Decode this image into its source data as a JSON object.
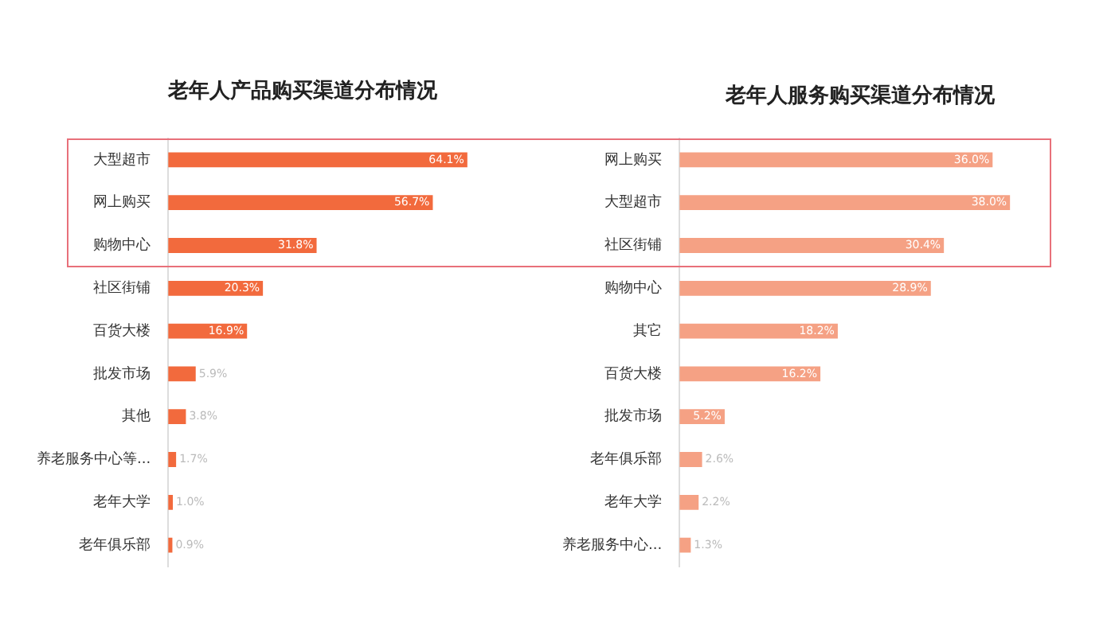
{
  "chart_data": [
    {
      "type": "bar",
      "orientation": "horizontal",
      "title": "老年人产品购买渠道分布情况",
      "categories": [
        "大型超市",
        "网上购买",
        "购物中心",
        "社区街铺",
        "百货大楼",
        "批发市场",
        "其他",
        "养老服务中心等...",
        "老年大学",
        "老年俱乐部"
      ],
      "values": [
        64.1,
        56.7,
        31.8,
        20.3,
        16.9,
        5.9,
        3.8,
        1.7,
        1.0,
        0.9
      ],
      "value_labels": [
        "64.1%",
        "56.7%",
        "31.8%",
        "20.3%",
        "16.9%",
        "5.9%",
        "3.8%",
        "1.7%",
        "1.0%",
        "0.9%"
      ],
      "color": "#f26a3d",
      "tick_labels": "y"
    },
    {
      "type": "bar",
      "orientation": "horizontal",
      "title": "老年人服务购买渠道分布情况",
      "categories": [
        "网上购买",
        "大型超市",
        "社区街铺",
        "购物中心",
        "其它",
        "百货大楼",
        "批发市场",
        "老年俱乐部",
        "老年大学",
        "养老服务中心..."
      ],
      "values": [
        36.0,
        38.0,
        30.4,
        28.9,
        18.2,
        16.2,
        5.2,
        2.6,
        2.2,
        1.3
      ],
      "value_labels": [
        "36.0%",
        "38.0%",
        "30.4%",
        "28.9%",
        "18.2%",
        "16.2%",
        "5.2%",
        "2.6%",
        "2.2%",
        "1.3%"
      ],
      "color": "#f5a184",
      "tick_labels": "y"
    }
  ]
}
